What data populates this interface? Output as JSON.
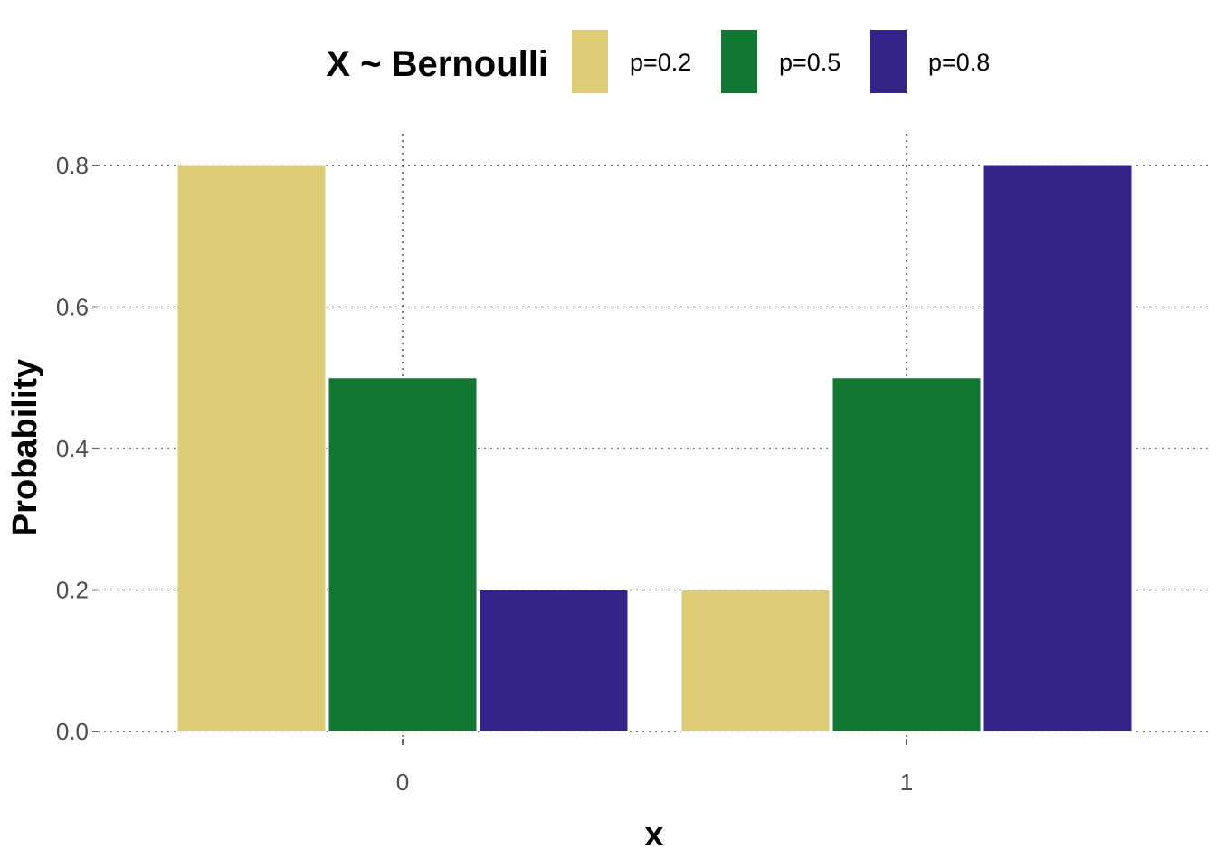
{
  "chart_data": {
    "type": "bar",
    "categories": [
      "0",
      "1"
    ],
    "series": [
      {
        "name": "p=0.2",
        "color": "#DDCC77",
        "values": [
          0.8,
          0.2
        ]
      },
      {
        "name": "p=0.5",
        "color": "#117733",
        "values": [
          0.5,
          0.5
        ]
      },
      {
        "name": "p=0.8",
        "color": "#332288",
        "values": [
          0.2,
          0.8
        ]
      }
    ],
    "legend_title": "X ~ Bernoulli",
    "legend_position": "top",
    "xlabel": "x",
    "ylabel": "Probability",
    "yticks": [
      "0.0",
      "0.2",
      "0.4",
      "0.6",
      "0.8"
    ],
    "ytick_values": [
      0.0,
      0.2,
      0.4,
      0.6,
      0.8
    ],
    "ylim": [
      0,
      0.8
    ],
    "grid": true
  }
}
